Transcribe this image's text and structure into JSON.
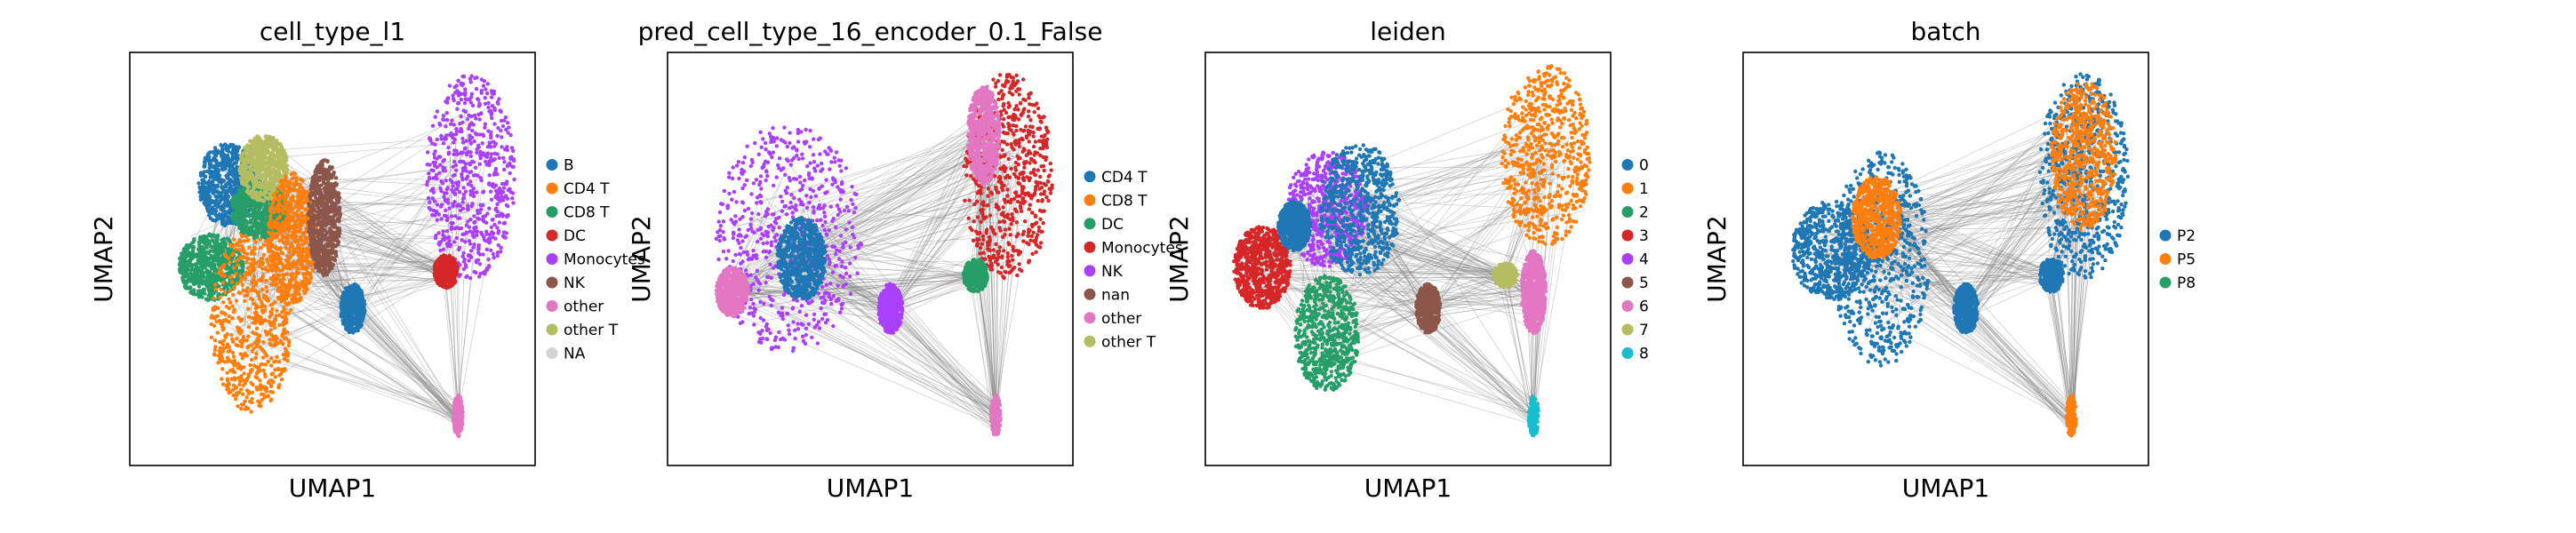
{
  "chart_data": [
    {
      "type": "scatter",
      "title": "cell_type_l1",
      "xlabel": "UMAP1",
      "ylabel": "UMAP2",
      "legend": [
        {
          "label": "B",
          "color": "#1f77b4"
        },
        {
          "label": "CD4 T",
          "color": "#ff7f0e"
        },
        {
          "label": "CD8 T",
          "color": "#279e68"
        },
        {
          "label": "DC",
          "color": "#d62728"
        },
        {
          "label": "Monocytes",
          "color": "#aa40fc"
        },
        {
          "label": "NK",
          "color": "#8c564b"
        },
        {
          "label": "other",
          "color": "#e377c2"
        },
        {
          "label": "other T",
          "color": "#b5bd61"
        },
        {
          "label": "NA",
          "color": "#d3d3d3"
        }
      ],
      "clusters": [
        {
          "label": "CD8 T",
          "cx": 0.2,
          "cy": 0.48,
          "rx": 0.08,
          "ry": 0.08
        },
        {
          "label": "CD4 T",
          "cx": 0.3,
          "cy": 0.35,
          "rx": 0.1,
          "ry": 0.22
        },
        {
          "label": "B",
          "cx": 0.24,
          "cy": 0.68,
          "rx": 0.07,
          "ry": 0.1
        },
        {
          "label": "CD8 T",
          "cx": 0.32,
          "cy": 0.62,
          "rx": 0.07,
          "ry": 0.07
        },
        {
          "label": "other T",
          "cx": 0.33,
          "cy": 0.72,
          "rx": 0.06,
          "ry": 0.08
        },
        {
          "label": "CD4 T",
          "cx": 0.4,
          "cy": 0.55,
          "rx": 0.06,
          "ry": 0.16
        },
        {
          "label": "NK",
          "cx": 0.48,
          "cy": 0.6,
          "rx": 0.04,
          "ry": 0.14
        },
        {
          "label": "B",
          "cx": 0.55,
          "cy": 0.38,
          "rx": 0.03,
          "ry": 0.06
        },
        {
          "label": "Monocytes",
          "cx": 0.84,
          "cy": 0.7,
          "rx": 0.11,
          "ry": 0.25
        },
        {
          "label": "DC",
          "cx": 0.78,
          "cy": 0.47,
          "rx": 0.03,
          "ry": 0.04
        },
        {
          "label": "other",
          "cx": 0.81,
          "cy": 0.12,
          "rx": 0.012,
          "ry": 0.05
        }
      ]
    },
    {
      "type": "scatter",
      "title": "pred_cell_type_16_encoder_0.1_False",
      "xlabel": "UMAP1",
      "ylabel": "UMAP2",
      "legend": [
        {
          "label": "CD4 T",
          "color": "#1f77b4"
        },
        {
          "label": "CD8 T",
          "color": "#ff7f0e"
        },
        {
          "label": "DC",
          "color": "#279e68"
        },
        {
          "label": "Monocytes",
          "color": "#d62728"
        },
        {
          "label": "NK",
          "color": "#aa40fc"
        },
        {
          "label": "nan",
          "color": "#8c564b"
        },
        {
          "label": "other",
          "color": "#e377c2"
        },
        {
          "label": "other T",
          "color": "#b5bd61"
        }
      ],
      "clusters": [
        {
          "label": "NK",
          "cx": 0.3,
          "cy": 0.55,
          "rx": 0.18,
          "ry": 0.28
        },
        {
          "label": "CD4 T",
          "cx": 0.33,
          "cy": 0.5,
          "rx": 0.06,
          "ry": 0.1
        },
        {
          "label": "other",
          "cx": 0.16,
          "cy": 0.42,
          "rx": 0.04,
          "ry": 0.06
        },
        {
          "label": "NK",
          "cx": 0.55,
          "cy": 0.38,
          "rx": 0.03,
          "ry": 0.06
        },
        {
          "label": "Monocytes",
          "cx": 0.84,
          "cy": 0.7,
          "rx": 0.11,
          "ry": 0.25
        },
        {
          "label": "other",
          "cx": 0.78,
          "cy": 0.8,
          "rx": 0.04,
          "ry": 0.12
        },
        {
          "label": "DC",
          "cx": 0.76,
          "cy": 0.46,
          "rx": 0.03,
          "ry": 0.04
        },
        {
          "label": "other",
          "cx": 0.81,
          "cy": 0.12,
          "rx": 0.012,
          "ry": 0.05
        }
      ]
    },
    {
      "type": "scatter",
      "title": "leiden",
      "xlabel": "UMAP1",
      "ylabel": "UMAP2",
      "legend": [
        {
          "label": "0",
          "color": "#1f77b4"
        },
        {
          "label": "1",
          "color": "#ff7f0e"
        },
        {
          "label": "2",
          "color": "#279e68"
        },
        {
          "label": "3",
          "color": "#d62728"
        },
        {
          "label": "4",
          "color": "#aa40fc"
        },
        {
          "label": "5",
          "color": "#8c564b"
        },
        {
          "label": "6",
          "color": "#e377c2"
        },
        {
          "label": "7",
          "color": "#b5bd61"
        },
        {
          "label": "8",
          "color": "#17becf"
        }
      ],
      "clusters": [
        {
          "label": "3",
          "cx": 0.14,
          "cy": 0.48,
          "rx": 0.07,
          "ry": 0.1
        },
        {
          "label": "4",
          "cx": 0.3,
          "cy": 0.62,
          "rx": 0.1,
          "ry": 0.14
        },
        {
          "label": "0",
          "cx": 0.38,
          "cy": 0.62,
          "rx": 0.1,
          "ry": 0.16
        },
        {
          "label": "2",
          "cx": 0.3,
          "cy": 0.32,
          "rx": 0.08,
          "ry": 0.14
        },
        {
          "label": "0",
          "cx": 0.22,
          "cy": 0.58,
          "rx": 0.04,
          "ry": 0.06
        },
        {
          "label": "5",
          "cx": 0.55,
          "cy": 0.38,
          "rx": 0.03,
          "ry": 0.06
        },
        {
          "label": "1",
          "cx": 0.84,
          "cy": 0.75,
          "rx": 0.11,
          "ry": 0.22
        },
        {
          "label": "6",
          "cx": 0.81,
          "cy": 0.42,
          "rx": 0.03,
          "ry": 0.1
        },
        {
          "label": "7",
          "cx": 0.74,
          "cy": 0.46,
          "rx": 0.03,
          "ry": 0.03
        },
        {
          "label": "8",
          "cx": 0.81,
          "cy": 0.12,
          "rx": 0.012,
          "ry": 0.05
        }
      ]
    },
    {
      "type": "scatter",
      "title": "batch",
      "xlabel": "UMAP1",
      "ylabel": "UMAP2",
      "legend": [
        {
          "label": "P2",
          "color": "#1f77b4"
        },
        {
          "label": "P5",
          "color": "#ff7f0e"
        },
        {
          "label": "P8",
          "color": "#279e68"
        }
      ],
      "clusters": [
        {
          "label": "P2",
          "cx": 0.22,
          "cy": 0.52,
          "rx": 0.1,
          "ry": 0.12
        },
        {
          "label": "P2",
          "cx": 0.34,
          "cy": 0.5,
          "rx": 0.12,
          "ry": 0.26
        },
        {
          "label": "P5",
          "cx": 0.33,
          "cy": 0.6,
          "rx": 0.06,
          "ry": 0.1
        },
        {
          "label": "P2",
          "cx": 0.55,
          "cy": 0.38,
          "rx": 0.03,
          "ry": 0.06
        },
        {
          "label": "P2",
          "cx": 0.84,
          "cy": 0.7,
          "rx": 0.11,
          "ry": 0.25
        },
        {
          "label": "P5",
          "cx": 0.84,
          "cy": 0.75,
          "rx": 0.08,
          "ry": 0.18
        },
        {
          "label": "P2",
          "cx": 0.76,
          "cy": 0.46,
          "rx": 0.03,
          "ry": 0.04
        },
        {
          "label": "P5",
          "cx": 0.81,
          "cy": 0.12,
          "rx": 0.012,
          "ry": 0.05
        }
      ]
    }
  ]
}
